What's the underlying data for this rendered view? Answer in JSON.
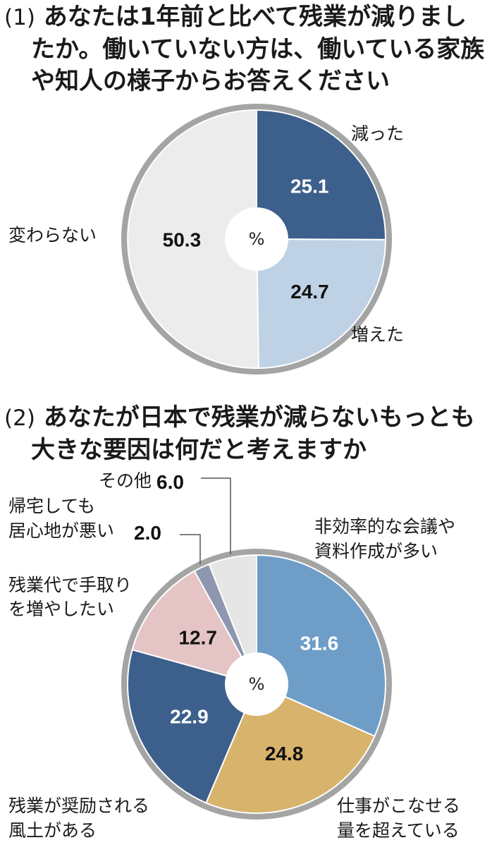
{
  "chart_data": [
    {
      "type": "pie",
      "question_number": "(1)",
      "title_lines": [
        "あなたは1年前と比べて残業が減りまし",
        "たか。働いていない方は、働いている家族",
        "や知人の様子からお答えください"
      ],
      "unit": "%",
      "slices": [
        {
          "label": "減った",
          "value": 25.1,
          "value_text": "25.1",
          "color": "#3d5f8c",
          "value_color": "#ffffff"
        },
        {
          "label": "増えた",
          "value": 24.7,
          "value_text": "24.7",
          "color": "#bfd1e5",
          "value_color": "#111111"
        },
        {
          "label": "変わらない",
          "value": 50.3,
          "value_text": "50.3",
          "color": "#ececec",
          "value_color": "#111111"
        }
      ]
    },
    {
      "type": "pie",
      "question_number": "(2)",
      "title_lines": [
        "あなたが日本で残業が減らないもっとも",
        "大きな要因は何だと考えますか"
      ],
      "unit": "%",
      "slices": [
        {
          "label_lines": [
            "非効率的な会議や",
            "資料作成が多い"
          ],
          "value": 31.6,
          "value_text": "31.6",
          "color": "#6e9ec8",
          "value_color": "#ffffff"
        },
        {
          "label_lines": [
            "仕事がこなせる",
            "量を超えている"
          ],
          "value": 24.8,
          "value_text": "24.8",
          "color": "#d8b36c",
          "value_color": "#111111"
        },
        {
          "label_lines": [
            "残業が奨励される",
            "風土がある"
          ],
          "value": 22.9,
          "value_text": "22.9",
          "color": "#3d5f8c",
          "value_color": "#ffffff"
        },
        {
          "label_lines": [
            "残業代で手取り",
            "を増やしたい"
          ],
          "value": 12.7,
          "value_text": "12.7",
          "color": "#e5c4c6",
          "value_color": "#111111"
        },
        {
          "label_lines": [
            "帰宅しても",
            "居心地が悪い"
          ],
          "value": 2.0,
          "value_text": "2.0",
          "color": "#8d97ad",
          "value_color": "#111111"
        },
        {
          "label_lines": [
            "その他"
          ],
          "value": 6.0,
          "value_text": "6.0",
          "color": "#e6e6e6",
          "value_color": "#111111"
        }
      ]
    }
  ]
}
